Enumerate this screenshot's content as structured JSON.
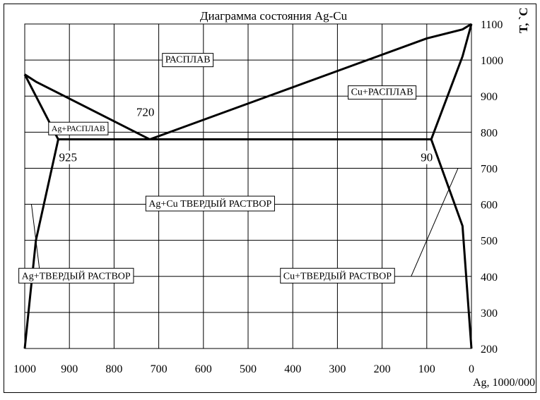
{
  "chart_data": {
    "type": "line",
    "title": "Диаграмма состояния Ag-Cu",
    "xlabel": "Ag, 1000/000",
    "ylabel": "T, `C",
    "x_ticks": [
      1000,
      900,
      800,
      700,
      600,
      500,
      400,
      300,
      200,
      100,
      0
    ],
    "y_ticks": [
      200,
      300,
      400,
      500,
      600,
      700,
      800,
      900,
      1000,
      1100
    ],
    "xlim": [
      1000,
      0
    ],
    "ylim": [
      200,
      1100
    ],
    "grid": true,
    "series": [
      {
        "points": [
          [
            1000,
            960
          ],
          [
            975,
            940
          ],
          [
            720,
            780
          ],
          [
            100,
            1060
          ],
          [
            20,
            1085
          ],
          [
            0,
            1100
          ]
        ]
      },
      {
        "points": [
          [
            1000,
            960
          ],
          [
            925,
            780
          ],
          [
            975,
            500
          ],
          [
            1000,
            200
          ]
        ]
      },
      {
        "points": [
          [
            0,
            1100
          ],
          [
            20,
            1010
          ],
          [
            90,
            780
          ],
          [
            20,
            540
          ],
          [
            0,
            200
          ]
        ]
      },
      {
        "points": [
          [
            925,
            780
          ],
          [
            90,
            780
          ]
        ]
      }
    ],
    "pointer_lines": [
      {
        "points": [
          [
            985,
            600
          ],
          [
            965,
            400
          ]
        ]
      },
      {
        "points": [
          [
            135,
            400
          ],
          [
            30,
            700
          ]
        ]
      }
    ],
    "annotations": [
      {
        "text": "РАСПЛАВ",
        "x": 635,
        "y": 1000,
        "boxed": true,
        "size": "normal"
      },
      {
        "text": "Cu+РАСПЛАВ",
        "x": 200,
        "y": 910,
        "boxed": true,
        "size": "normal"
      },
      {
        "text": "Ag+РАСПЛАВ",
        "x": 880,
        "y": 810,
        "boxed": true,
        "size": "small"
      },
      {
        "text": "Ag+Cu ТВЕРДЫЙ РАСТВОР",
        "x": 585,
        "y": 600,
        "boxed": true,
        "size": "normal"
      },
      {
        "text": "Ag+ТВЕРДЫЙ РАСТВОР",
        "x": 885,
        "y": 400,
        "boxed": true,
        "size": "normal"
      },
      {
        "text": "Cu+ТВЕРДЫЙ РАСТВОР",
        "x": 300,
        "y": 400,
        "boxed": true,
        "size": "normal"
      },
      {
        "text": "720",
        "x": 730,
        "y": 855,
        "boxed": false,
        "size": "number"
      },
      {
        "text": "925",
        "x": 903,
        "y": 730,
        "boxed": false,
        "size": "number"
      },
      {
        "text": "90",
        "x": 100,
        "y": 730,
        "boxed": false,
        "size": "number"
      }
    ]
  }
}
